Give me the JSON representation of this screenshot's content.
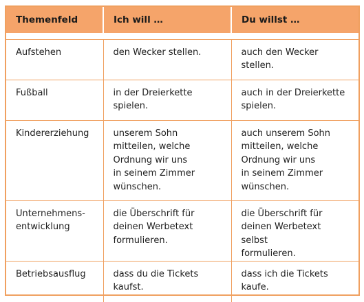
{
  "table": {
    "headers": [
      "Themenfeld",
      "Ich will …",
      "Du willst …"
    ],
    "rows": [
      [
        "Aufstehen",
        "den Wecker stellen.",
        "auch den Wecker\nstellen."
      ],
      [
        "Fußball",
        "in der Dreierkette\nspielen.",
        "auch in der Dreierkette\nspielen."
      ],
      [
        "Kindererziehung",
        "unserem Sohn\nmitteilen, welche\nOrdnung wir uns\nin seinem Zimmer\nwünschen.",
        "auch unserem Sohn\nmitteilen, welche\nOrdnung wir uns\nin seinem Zimmer\nwünschen."
      ],
      [
        "Unternehmens-\nentwicklung",
        "die Überschrift für\ndeinen Werbetext\nformulieren.",
        "die Überschrift für\ndeinen Werbetext selbst\nformulieren."
      ],
      [
        "Betriebsausflug",
        "dass du die Tickets\nkaufst.",
        "dass ich die Tickets\nkaufe."
      ]
    ]
  },
  "colors": {
    "header_bg": "#f5a46a",
    "border": "#f0a060"
  }
}
